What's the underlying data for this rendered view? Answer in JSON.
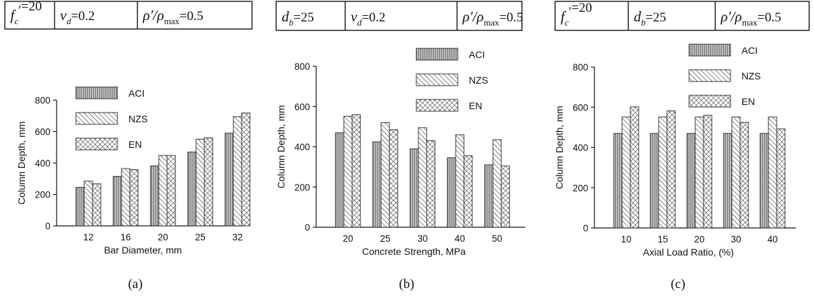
{
  "chart_data": [
    {
      "type": "bar",
      "params": [
        {
          "sym": "f",
          "sup": "c",
          "prime": "′",
          "eq": "=20"
        },
        {
          "sym": "ν",
          "sub": "d",
          "eq": "=0.2"
        },
        {
          "sym": "ρ′/ρ",
          "sub": "max",
          "eq": "=0.5"
        }
      ],
      "caption": "(a)",
      "xlabel": "Bar Diameter, mm",
      "ylabel": "Column Depth, mm",
      "ylim": [
        0,
        800
      ],
      "yticks": [
        0,
        200,
        400,
        600,
        800
      ],
      "categories": [
        "12",
        "16",
        "20",
        "25",
        "32"
      ],
      "series": [
        {
          "name": "ACI",
          "values": [
            245,
            315,
            382,
            470,
            590
          ]
        },
        {
          "name": "NZS",
          "values": [
            285,
            365,
            448,
            552,
            695
          ]
        },
        {
          "name": "EN",
          "values": [
            268,
            358,
            448,
            560,
            718
          ]
        }
      ]
    },
    {
      "type": "bar",
      "params": [
        {
          "sym": "d",
          "sub": "b",
          "eq": "=25"
        },
        {
          "sym": "ν",
          "sub": "d",
          "eq": "=0.2"
        },
        {
          "sym": "ρ′/ρ",
          "sub": "max",
          "eq": "=0.5"
        }
      ],
      "caption": "(b)",
      "xlabel": "Concrete Strength, MPa",
      "ylabel": "Column Depth, mm",
      "ylim": [
        0,
        800
      ],
      "yticks": [
        0,
        200,
        400,
        600,
        800
      ],
      "categories": [
        "20",
        "25",
        "30",
        "40",
        "50"
      ],
      "series": [
        {
          "name": "ACI",
          "values": [
            470,
            425,
            390,
            345,
            310
          ]
        },
        {
          "name": "NZS",
          "values": [
            552,
            520,
            495,
            460,
            435
          ]
        },
        {
          "name": "EN",
          "values": [
            560,
            485,
            430,
            355,
            305
          ]
        }
      ]
    },
    {
      "type": "bar",
      "params": [
        {
          "sym": "f",
          "sup": "c",
          "prime": "′",
          "eq": "=20"
        },
        {
          "sym": "d",
          "sub": "b",
          "eq": "=25"
        },
        {
          "sym": "ρ′/ρ",
          "sub": "max",
          "eq": "=0.5"
        }
      ],
      "caption": "(c)",
      "xlabel": "Axial Load Ratio, (%)",
      "ylabel": "Column Depth, mm",
      "ylim": [
        0,
        800
      ],
      "yticks": [
        0,
        200,
        400,
        600,
        800
      ],
      "categories": [
        "10",
        "15",
        "20",
        "30",
        "40"
      ],
      "series": [
        {
          "name": "ACI",
          "values": [
            470,
            470,
            470,
            470,
            470
          ]
        },
        {
          "name": "NZS",
          "values": [
            552,
            552,
            552,
            552,
            552
          ]
        },
        {
          "name": "EN",
          "values": [
            602,
            582,
            560,
            525,
            492
          ]
        }
      ]
    }
  ]
}
